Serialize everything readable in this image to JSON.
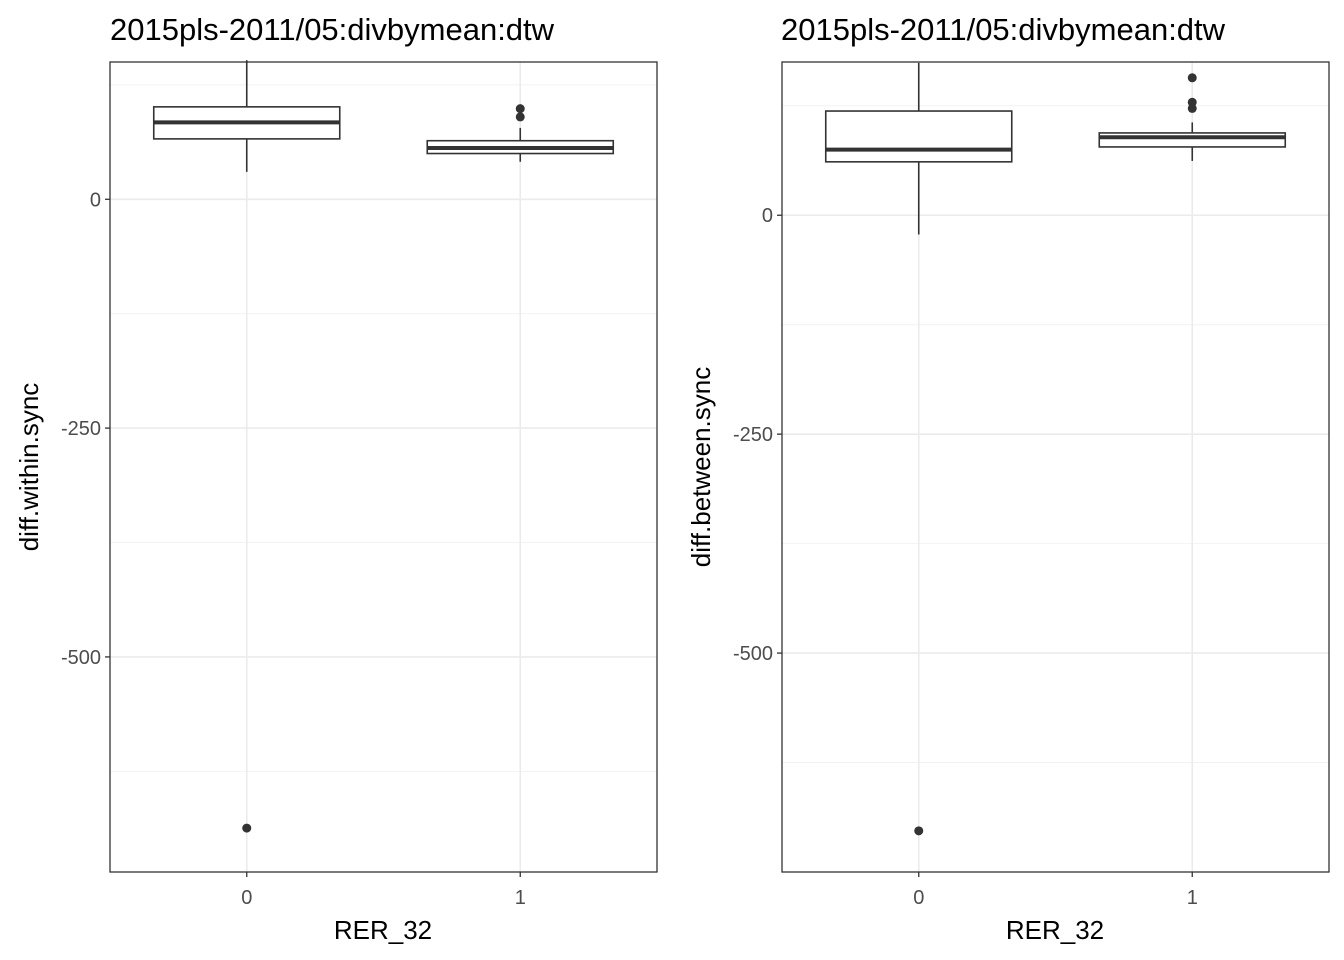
{
  "chart_data": [
    {
      "type": "boxplot",
      "title": "2015pls-2011/05:divbymean:dtw",
      "xlabel": "RER_32",
      "ylabel": "diff.within.sync",
      "categories": [
        "0",
        "1"
      ],
      "ylim": [
        -735,
        150
      ],
      "yticks": [
        0,
        -250,
        -500
      ],
      "ytick_labels": [
        "0",
        "-250",
        "-500"
      ],
      "grid": true,
      "boxes": [
        {
          "category": "0",
          "whisker_low": 30,
          "q1": 66,
          "median": 84,
          "q3": 101,
          "whisker_high": 152,
          "outliers": [
            -687
          ]
        },
        {
          "category": "1",
          "whisker_low": 41,
          "q1": 50,
          "median": 56,
          "q3": 64,
          "whisker_high": 78,
          "outliers": [
            90,
            99
          ]
        }
      ]
    },
    {
      "type": "boxplot",
      "title": "2015pls-2011/05:divbymean:dtw",
      "xlabel": "RER_32",
      "ylabel": "diff.between.sync",
      "categories": [
        "0",
        "1"
      ],
      "ylim": [
        -750,
        175
      ],
      "yticks": [
        0,
        -250,
        -500
      ],
      "ytick_labels": [
        "0",
        "-250",
        "-500"
      ],
      "grid": true,
      "boxes": [
        {
          "category": "0",
          "whisker_low": -22,
          "q1": 61,
          "median": 75,
          "q3": 119,
          "whisker_high": 174,
          "outliers": [
            -703
          ]
        },
        {
          "category": "1",
          "whisker_low": 62,
          "q1": 78,
          "median": 89,
          "q3": 94,
          "whisker_high": 106,
          "outliers": [
            122,
            129,
            157
          ]
        }
      ]
    }
  ]
}
